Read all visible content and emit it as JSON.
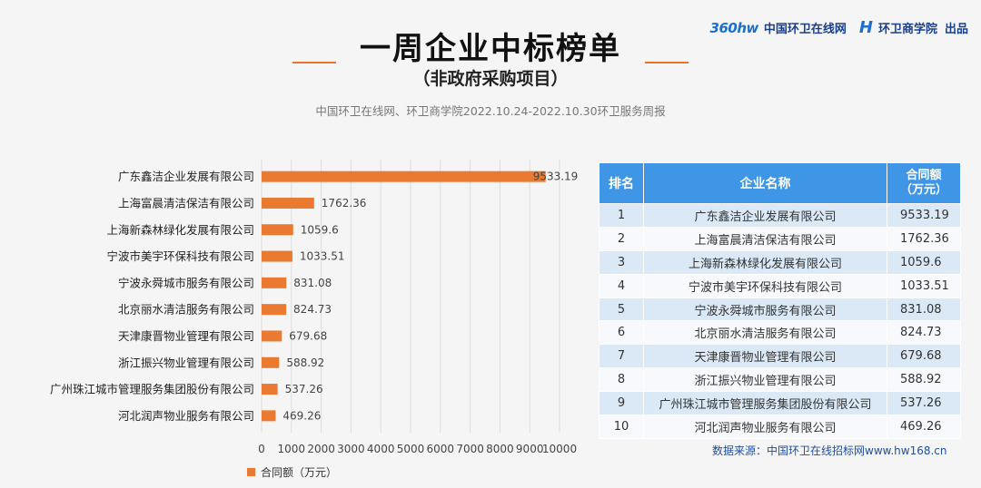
{
  "brand": {
    "logo_text": "360hw",
    "site_name": "中国环卫在线网",
    "school_name": "环卫商学院",
    "produced": "出品"
  },
  "header": {
    "title": "一周企业中标榜单",
    "subtitle": "（非政府采购项目）",
    "source_line": "中国环卫在线网、环卫商学院2022.10.24-2022.10.30环卫服务周报"
  },
  "chart_data": {
    "type": "bar",
    "orientation": "horizontal",
    "categories": [
      "广东鑫洁企业发展有限公司",
      "上海富晨清洁保洁有限公司",
      "上海新森林绿化发展有限公司",
      "宁波市美宇环保科技有限公司",
      "宁波永舜城市服务有限公司",
      "北京丽水清洁服务有限公司",
      "天津康晋物业管理有限公司",
      "浙江振兴物业管理有限公司",
      "广州珠江城市管理服务集团股份有限公司",
      "河北润声物业服务有限公司"
    ],
    "series": [
      {
        "name": "合同额（万元）",
        "values": [
          9533.19,
          1762.36,
          1059.6,
          1033.51,
          831.08,
          824.73,
          679.68,
          588.92,
          537.26,
          469.26
        ]
      }
    ],
    "value_labels": [
      "9533.19",
      "1762.36",
      "1059.6",
      "1033.51",
      "831.08",
      "824.73",
      "679.68",
      "588.92",
      "537.26",
      "469.26"
    ],
    "xlim": [
      0,
      10000
    ],
    "xticks": [
      0,
      1000,
      2000,
      3000,
      4000,
      5000,
      6000,
      7000,
      8000,
      9000,
      10000
    ],
    "grid": "vertical",
    "legend_position": "bottom-left",
    "bar_color": "#ea7a31"
  },
  "table": {
    "headers": {
      "rank": "排名",
      "name": "企业名称",
      "amount_line1": "合同额",
      "amount_line2": "（万元）"
    },
    "rows": [
      {
        "rank": "1",
        "name": "广东鑫洁企业发展有限公司",
        "amount": "9533.19"
      },
      {
        "rank": "2",
        "name": "上海富晨清洁保洁有限公司",
        "amount": "1762.36"
      },
      {
        "rank": "3",
        "name": "上海新森林绿化发展有限公司",
        "amount": "1059.6"
      },
      {
        "rank": "4",
        "name": "宁波市美宇环保科技有限公司",
        "amount": "1033.51"
      },
      {
        "rank": "5",
        "name": "宁波永舜城市服务有限公司",
        "amount": "831.08"
      },
      {
        "rank": "6",
        "name": "北京丽水清洁服务有限公司",
        "amount": "824.73"
      },
      {
        "rank": "7",
        "name": "天津康晋物业管理有限公司",
        "amount": "679.68"
      },
      {
        "rank": "8",
        "name": "浙江振兴物业管理有限公司",
        "amount": "588.92"
      },
      {
        "rank": "9",
        "name": "广州珠江城市管理服务集团股份有限公司",
        "amount": "537.26"
      },
      {
        "rank": "10",
        "name": "河北润声物业服务有限公司",
        "amount": "469.26"
      }
    ]
  },
  "footer": {
    "data_source": "数据来源：中国环卫在线招标网www.hw168.cn"
  },
  "colors": {
    "accent": "#e8742a",
    "table_header": "#3f95e6",
    "row_odd": "#dbe8f6",
    "row_even": "#f7f9fc",
    "source_text": "#1f4fa8"
  }
}
